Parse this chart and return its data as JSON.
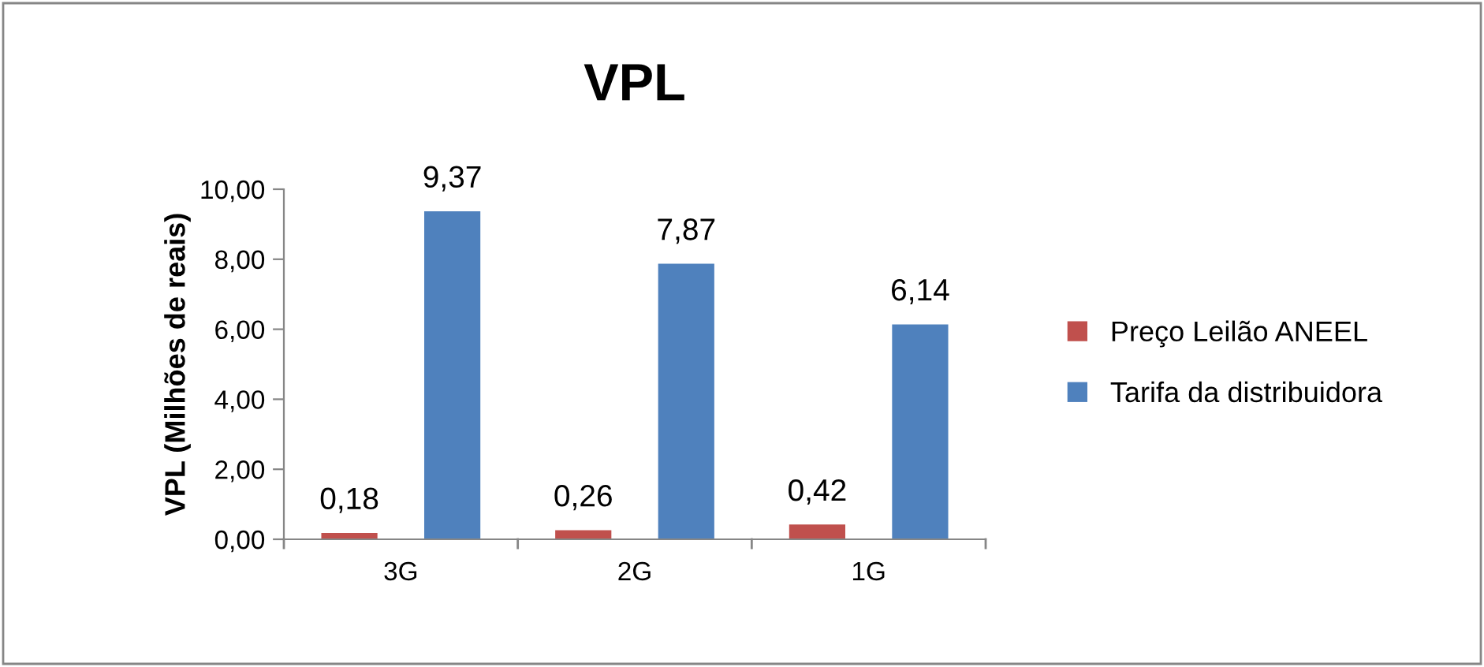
{
  "chart_data": {
    "type": "bar",
    "title": "VPL",
    "ylabel": "VPL (Milhões de reais)",
    "categories": [
      "3G",
      "2G",
      "1G"
    ],
    "series": [
      {
        "name": "Preço Leilão ANEEL",
        "color": "#c0504d",
        "values": [
          0.18,
          0.26,
          0.42
        ],
        "value_labels": [
          "0,18",
          "0,26",
          "0,42"
        ]
      },
      {
        "name": "Tarifa da distribuidora",
        "color": "#4f81bd",
        "values": [
          9.37,
          7.87,
          6.14
        ],
        "value_labels": [
          "9,37",
          "7,87",
          "6,14"
        ]
      }
    ],
    "ylim": [
      0,
      10
    ],
    "yticks": [
      {
        "value": 0,
        "label": "0,00"
      },
      {
        "value": 2,
        "label": "2,00"
      },
      {
        "value": 4,
        "label": "4,00"
      },
      {
        "value": 6,
        "label": "6,00"
      },
      {
        "value": 8,
        "label": "8,00"
      },
      {
        "value": 10,
        "label": "10,00"
      }
    ],
    "legend": "right",
    "grid": false
  }
}
